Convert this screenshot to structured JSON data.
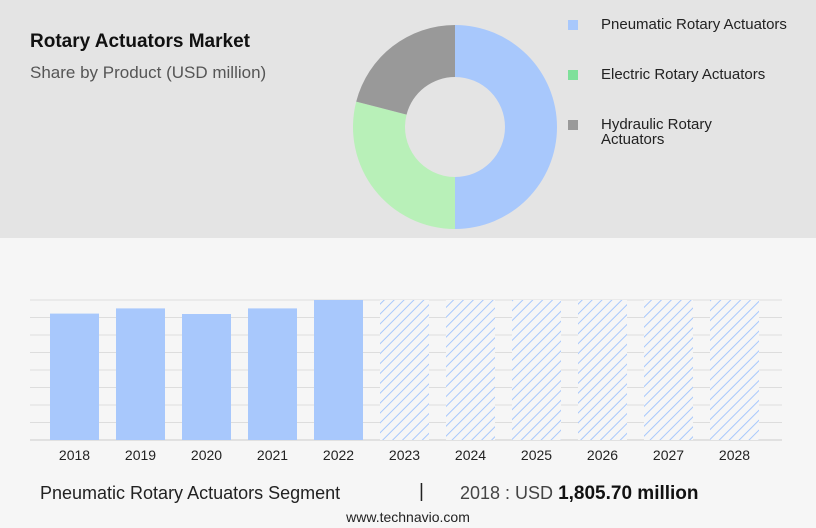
{
  "chart_data": [
    {
      "type": "pie",
      "title": "Rotary Actuators Market",
      "subtitle": "Share by Product (USD million)",
      "series": [
        {
          "name": "Pneumatic Rotary Actuators",
          "value": 50,
          "color": "#a8c8fc"
        },
        {
          "name": "Electric Rotary Actuators",
          "value": 29,
          "color": "#b8f0b8"
        },
        {
          "name": "Hydraulic Rotary Actuators",
          "value": 21,
          "color": "#999999"
        }
      ],
      "legend": [
        {
          "label": "Pneumatic Rotary Actuators",
          "color": "#a8c8fc"
        },
        {
          "label": "Electric Rotary Actuators",
          "color": "#7ee09a"
        },
        {
          "label": "Hydraulic Rotary Actuators",
          "color": "#999999"
        }
      ],
      "legend_position": "right"
    },
    {
      "type": "bar",
      "categories": [
        "2018",
        "2019",
        "2020",
        "2021",
        "2022",
        "2023",
        "2024",
        "2025",
        "2026",
        "2027",
        "2028"
      ],
      "values": [
        1805.7,
        1880,
        1800,
        1880,
        2000,
        null,
        null,
        null,
        null,
        null,
        null
      ],
      "forecast_categories": [
        "2023",
        "2024",
        "2025",
        "2026",
        "2027",
        "2028"
      ],
      "bar_color": "#a8c8fc",
      "forecast_pattern": "hatched",
      "grid": true,
      "axis_labels_shown": false
    }
  ],
  "footer": {
    "segment": "Pneumatic Rotary Actuators Segment",
    "divider": "|",
    "value_prefix": "2018 : USD ",
    "value_number": "1,805.70 million"
  },
  "source": "www.technavio.com"
}
